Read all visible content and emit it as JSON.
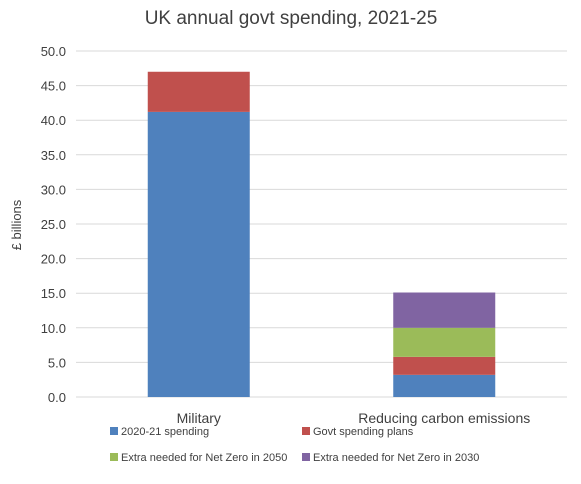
{
  "chart_data": {
    "type": "bar",
    "stacked": true,
    "title": "UK annual govt spending, 2021-25",
    "xlabel": "",
    "ylabel": "£ billions",
    "ylim": [
      0,
      50
    ],
    "yticks": [
      "0.0",
      "5.0",
      "10.0",
      "15.0",
      "20.0",
      "25.0",
      "30.0",
      "35.0",
      "40.0",
      "45.0",
      "50.0"
    ],
    "grid": true,
    "legend_position": "bottom",
    "categories": [
      "Military",
      "Reducing carbon emissions"
    ],
    "series": [
      {
        "name": "2020-21 spending",
        "color": "#4f81bd",
        "values": [
          41.2,
          3.2
        ]
      },
      {
        "name": "Govt spending plans",
        "color": "#c0504d",
        "values": [
          5.8,
          2.6
        ]
      },
      {
        "name": "Extra needed for Net Zero in 2050",
        "color": "#9bbb59",
        "values": [
          0,
          4.2
        ]
      },
      {
        "name": "Extra needed for Net Zero in 2030",
        "color": "#8064a2",
        "values": [
          0,
          5.1
        ]
      }
    ]
  }
}
